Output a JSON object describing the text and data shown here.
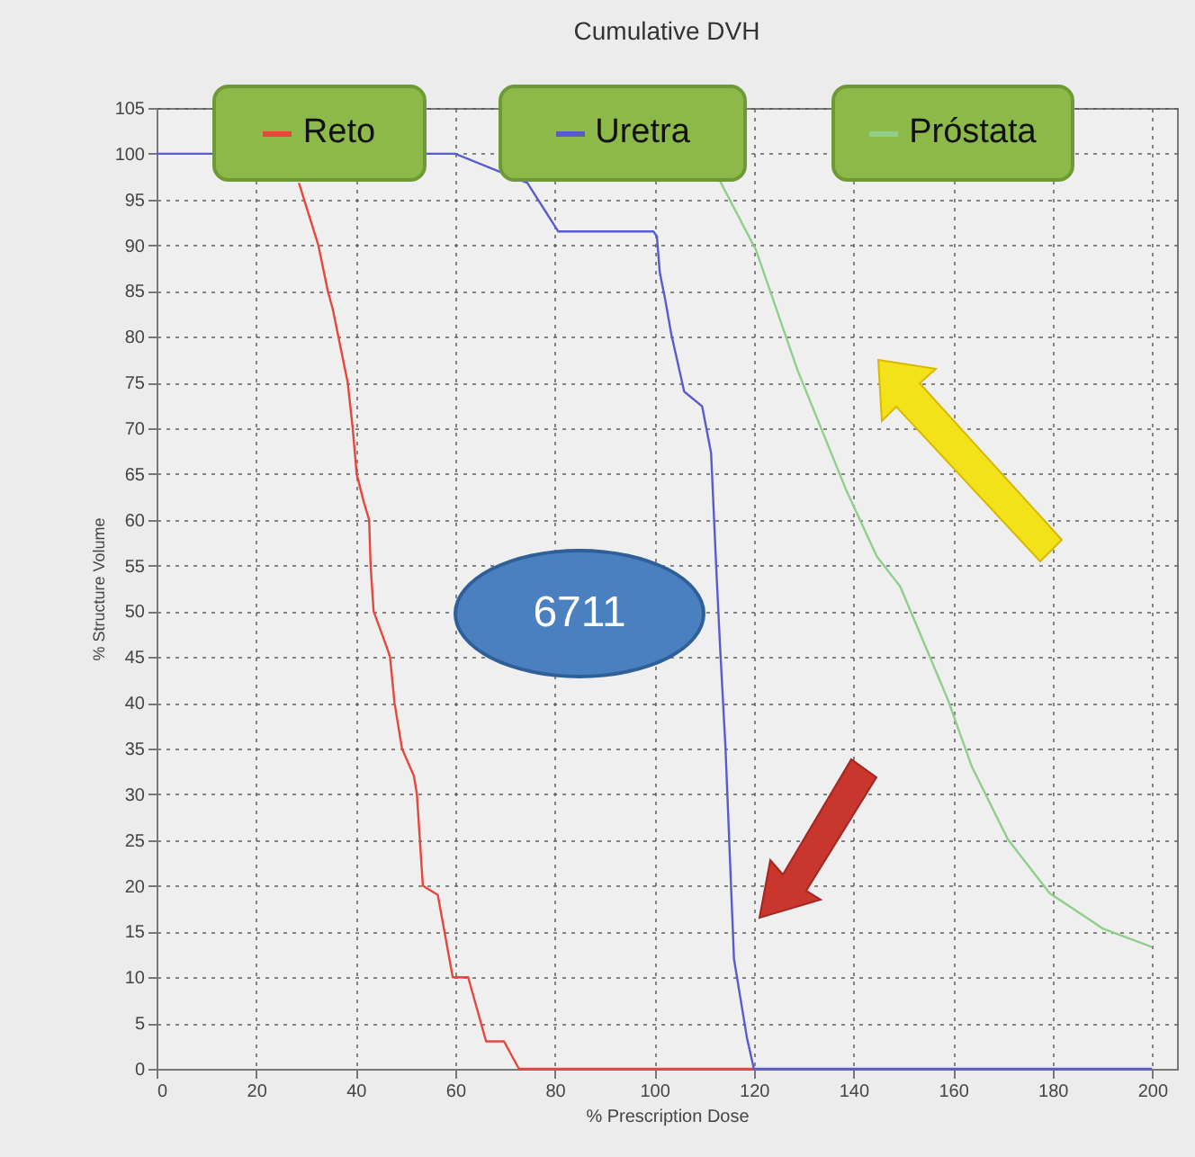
{
  "chart_data": {
    "type": "line",
    "title": "Cumulative DVH",
    "xlabel": "% Prescription Dose",
    "ylabel": "% Structure Volume",
    "xlim": [
      0,
      205
    ],
    "ylim": [
      0,
      105
    ],
    "xticks": [
      0,
      20,
      40,
      60,
      80,
      100,
      120,
      140,
      160,
      180,
      200
    ],
    "yticks": [
      0,
      5,
      10,
      15,
      20,
      25,
      30,
      35,
      40,
      45,
      50,
      55,
      60,
      65,
      70,
      75,
      80,
      85,
      90,
      95,
      100,
      105
    ],
    "grid": true,
    "legend": "top",
    "line_style": "solid",
    "marker": "none",
    "annotations": [
      "6711"
    ],
    "series": [
      {
        "name": "Reto",
        "color": "#e8463c",
        "x": [
          28.6,
          32.5,
          34.4,
          35.4,
          38.4,
          39.4,
          40.2,
          41.6,
          42.7,
          43,
          43.6,
          46.3,
          46.9,
          47.8,
          49.3,
          51.7,
          52.3,
          53.5,
          56.5,
          59.5,
          62.6,
          66.2,
          69.8,
          72.8,
          120
        ],
        "values": [
          96.8,
          90,
          85,
          83,
          75,
          70,
          65,
          62,
          60,
          55,
          50,
          46,
          45,
          40,
          35,
          32,
          30,
          20,
          19,
          10,
          10,
          3,
          3,
          0,
          0
        ]
      },
      {
        "name": "Uretra",
        "color": "#5a5ad0",
        "x": [
          0,
          60,
          74.5,
          80.7,
          99.8,
          100.5,
          101.1,
          102.2,
          103.4,
          106,
          109.6,
          111.4,
          112.5,
          113.2,
          114.3,
          116,
          118.6,
          120,
          200
        ],
        "values": [
          100,
          100,
          96.8,
          91.5,
          91.5,
          91,
          87,
          84,
          80.3,
          74,
          72.4,
          67.3,
          54,
          46.2,
          35,
          12,
          3.4,
          0,
          0
        ]
      },
      {
        "name": "Próstata",
        "color": "#8fcf8a",
        "x": [
          113.2,
          120.4,
          128.8,
          138.5,
          144.7,
          149.4,
          159,
          163.8,
          171,
          179.4,
          190.2,
          200
        ],
        "values": [
          97,
          89.5,
          76.3,
          63.3,
          56,
          52.7,
          40.3,
          33,
          25.1,
          19.2,
          15.3,
          13.3
        ]
      }
    ]
  }
}
